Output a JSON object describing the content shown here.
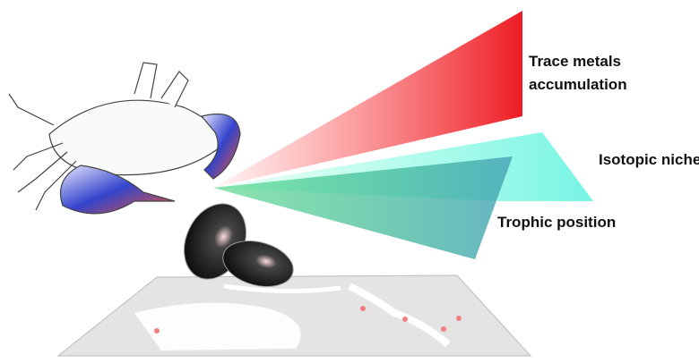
{
  "labels": {
    "trace_metals": [
      "Trace metals",
      "accumulation"
    ],
    "isotopic_niche": "Isotopic niche",
    "trophic_position": "Trophic position"
  }
}
